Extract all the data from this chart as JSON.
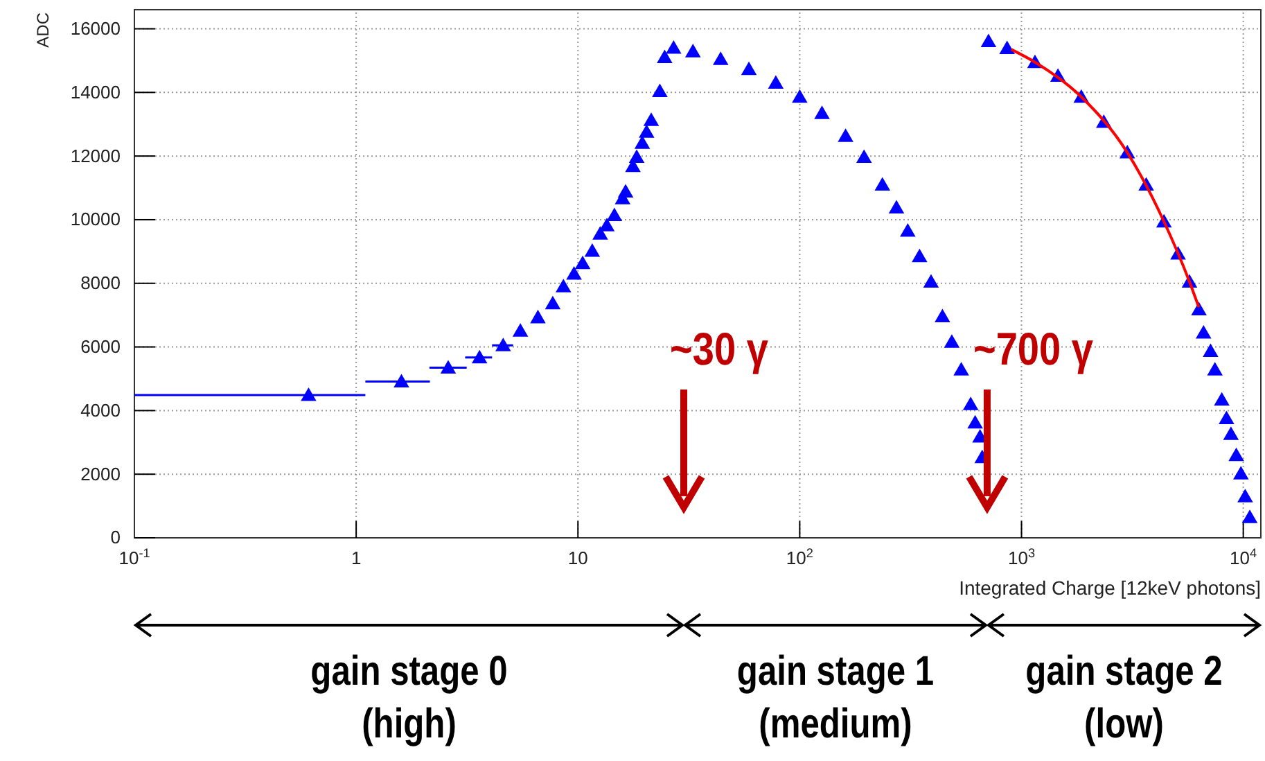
{
  "chart_data": {
    "type": "scatter",
    "xlabel": "Integrated Charge [12keV photons]",
    "ylabel": "ADC",
    "log": "x",
    "grid": true,
    "marker": "triangle",
    "xlim": [
      0.1,
      12000
    ],
    "ylim": [
      0,
      16600
    ],
    "xticks": [
      {
        "value": 0.1,
        "label": "10$^{-1}$"
      },
      1,
      10,
      {
        "value": 100,
        "label": "10$^{2}$"
      },
      {
        "value": 1000,
        "label": "10$^{3}$"
      },
      {
        "value": 10000,
        "label": "10$^{4}$"
      }
    ],
    "yticks": [
      0,
      2000,
      4000,
      6000,
      8000,
      10000,
      12000,
      14000,
      16000
    ],
    "series": [
      {
        "color": "#0000ff",
        "x": [
          0.61,
          1.6,
          2.6,
          3.6,
          4.6,
          5.5,
          6.6,
          7.7,
          8.6,
          9.6,
          10.5,
          11.6,
          12.6,
          13.5,
          14.6,
          15.9,
          16.4,
          17.7,
          18.4,
          19.5,
          20.4,
          21.4,
          23.4,
          24.6,
          27
        ],
        "values": [
          4490,
          4910,
          5350,
          5670,
          6050,
          6510,
          6930,
          7370,
          7900,
          8300,
          8630,
          9020,
          9560,
          9820,
          10140,
          10670,
          10880,
          11680,
          11970,
          12410,
          12760,
          13130,
          14040,
          15110,
          15400
        ],
        "xerrors": [
          [
            0.1,
            1.1
          ],
          [
            1.1,
            2.15
          ],
          [
            2.14,
            3.15
          ],
          [
            3.1,
            4.1
          ],
          [
            4.1,
            5.1
          ],
          null,
          null,
          null,
          null,
          null,
          null,
          null,
          null,
          null,
          null,
          null,
          null,
          null,
          null,
          null,
          null,
          null,
          null,
          null,
          null
        ]
      },
      {
        "color": "#0000ff",
        "x": [
          33,
          44,
          59,
          78,
          100,
          126,
          161,
          195,
          236,
          273,
          307,
          347,
          391,
          440,
          485,
          535,
          590,
          618,
          650,
          665
        ],
        "values": [
          15290,
          15050,
          14730,
          14300,
          13860,
          13350,
          12630,
          11970,
          11100,
          10380,
          9650,
          8850,
          8050,
          6960,
          6160,
          5290,
          4200,
          3620,
          3180,
          2530
        ]
      },
      {
        "color": "#0000ff",
        "x": [
          710,
          861,
          1150,
          1460,
          1860,
          2350,
          3000,
          3650,
          4390,
          5080,
          5720,
          6310,
          6620,
          7120,
          7450,
          8000,
          8400,
          8800,
          9300,
          9760,
          10200,
          10700
        ],
        "values": [
          15610,
          15390,
          14950,
          14520,
          13860,
          13070,
          12110,
          11100,
          9940,
          8930,
          8050,
          7180,
          6450,
          5870,
          5290,
          4340,
          3760,
          3260,
          2600,
          2020,
          1300,
          650
        ]
      },
      {
        "type": "line",
        "marker": "none",
        "color": "#ff0000",
        "x": [
          900,
          1150,
          1860,
          3000,
          4390,
          5720,
          6300
        ],
        "values": [
          15350,
          14950,
          13860,
          12110,
          9940,
          8050,
          7250
        ]
      }
    ],
    "ref_lines": [
      {
        "axis": "x",
        "value": 30,
        "label": "~30 γ"
      },
      {
        "axis": "x",
        "value": 700,
        "label": "~700 γ"
      }
    ],
    "annotations": [
      "gain stage 0\n(high)",
      "gain stage 1\n(medium)",
      "gain stage 2\n(low)"
    ]
  }
}
